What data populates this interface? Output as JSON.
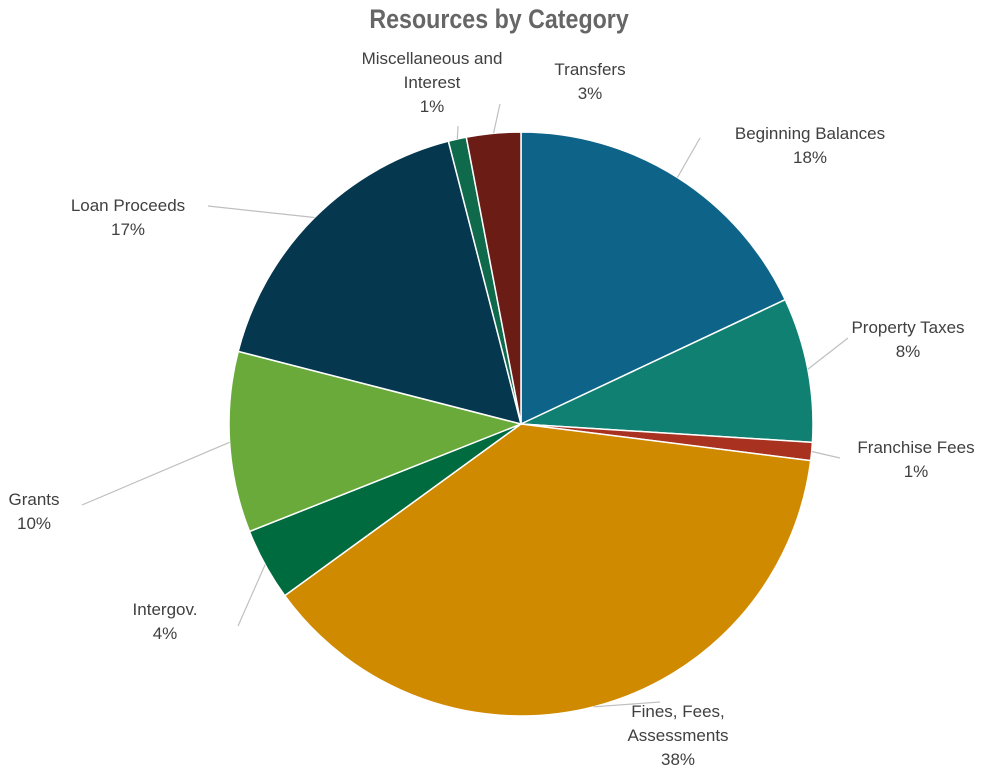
{
  "chart_data": {
    "type": "pie",
    "title": "Resources by Category",
    "slices": [
      {
        "name": "Beginning Balances",
        "value": 18,
        "label": "18%",
        "color": "#0e6488"
      },
      {
        "name": "Property Taxes",
        "value": 8,
        "label": "8%",
        "color": "#0f8071"
      },
      {
        "name": "Franchise Fees",
        "value": 1,
        "label": "1%",
        "color": "#a8321f"
      },
      {
        "name": "Fines, Fees, Assessments",
        "value": 38,
        "label": "38%",
        "color": "#d08a00"
      },
      {
        "name": "Intergov.",
        "value": 4,
        "label": "4%",
        "color": "#006b3e"
      },
      {
        "name": "Grants",
        "value": 10,
        "label": "10%",
        "color": "#6aaa3a"
      },
      {
        "name": "Loan Proceeds",
        "value": 17,
        "label": "17%",
        "color": "#05384e"
      },
      {
        "name": "Miscellaneous and Interest",
        "value": 1,
        "label": "1%",
        "color": "#0e6a4a"
      },
      {
        "name": "Transfers",
        "value": 3,
        "label": "3%",
        "color": "#6b1c15"
      }
    ],
    "legend": "none",
    "data_labels": "outside with leader lines"
  }
}
